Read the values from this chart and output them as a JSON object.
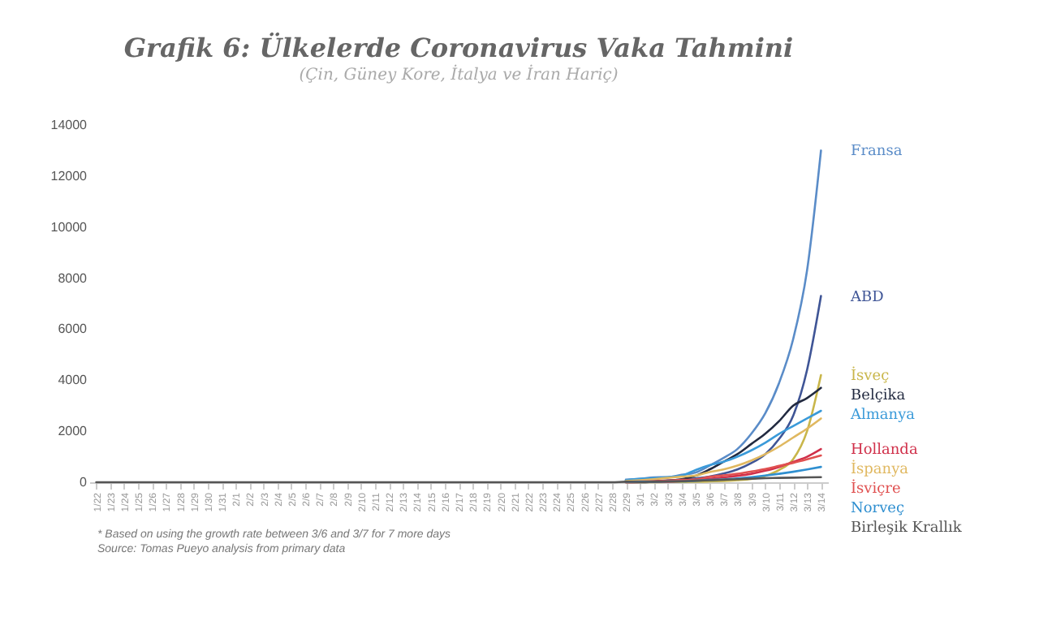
{
  "chart_data": {
    "type": "line",
    "title": "Grafik 6: Ülkelerde Coronavirus Vaka Tahmini",
    "subtitle": "(Çin, Güney Kore, İtalya ve İran Hariç)",
    "categories": [
      "1/22",
      "1/23",
      "1/24",
      "1/25",
      "1/26",
      "1/27",
      "1/28",
      "1/29",
      "1/30",
      "1/31",
      "2/1",
      "2/2",
      "2/3",
      "2/4",
      "2/5",
      "2/6",
      "2/7",
      "2/8",
      "2/9",
      "2/10",
      "2/11",
      "2/12",
      "2/13",
      "2/14",
      "2/15",
      "2/16",
      "2/17",
      "2/18",
      "2/19",
      "2/20",
      "2/21",
      "2/22",
      "2/23",
      "2/24",
      "2/25",
      "2/26",
      "2/27",
      "2/28",
      "2/29",
      "3/1",
      "3/2",
      "3/3",
      "3/4",
      "3/5",
      "3/6",
      "3/7",
      "3/8",
      "3/9",
      "3/10",
      "3/11",
      "3/12",
      "3/13",
      "3/14"
    ],
    "series": [
      {
        "name": "Fransa",
        "color": "#5a8cc8",
        "values": [
          null,
          null,
          null,
          null,
          null,
          null,
          null,
          null,
          null,
          null,
          null,
          null,
          null,
          null,
          null,
          null,
          null,
          null,
          null,
          null,
          null,
          null,
          null,
          null,
          null,
          null,
          null,
          null,
          null,
          null,
          null,
          null,
          null,
          null,
          null,
          null,
          null,
          null,
          100,
          130,
          190,
          200,
          290,
          380,
          650,
          950,
          1300,
          1900,
          2700,
          3900,
          5600,
          8300,
          13000
        ]
      },
      {
        "name": "ABD",
        "color": "#3f5596",
        "values": [
          null,
          null,
          null,
          null,
          null,
          null,
          null,
          null,
          null,
          null,
          null,
          null,
          null,
          null,
          null,
          null,
          null,
          null,
          null,
          null,
          null,
          null,
          null,
          null,
          null,
          null,
          null,
          null,
          null,
          null,
          null,
          null,
          null,
          null,
          null,
          null,
          null,
          null,
          70,
          30,
          50,
          70,
          100,
          150,
          220,
          340,
          500,
          750,
          1100,
          1700,
          2600,
          4400,
          7300
        ]
      },
      {
        "name": "İsveç",
        "color": "#c9b64a",
        "values": [
          null,
          null,
          null,
          null,
          null,
          null,
          null,
          null,
          null,
          null,
          null,
          null,
          null,
          null,
          null,
          null,
          null,
          null,
          null,
          null,
          null,
          null,
          null,
          null,
          null,
          null,
          null,
          null,
          null,
          null,
          null,
          null,
          null,
          null,
          null,
          null,
          null,
          null,
          0,
          0,
          0,
          10,
          10,
          20,
          30,
          50,
          80,
          130,
          250,
          480,
          900,
          2000,
          4200
        ]
      },
      {
        "name": "Belçika",
        "color": "#222a40",
        "values": [
          null,
          null,
          null,
          null,
          null,
          null,
          null,
          null,
          null,
          null,
          null,
          null,
          null,
          null,
          null,
          null,
          null,
          null,
          null,
          null,
          null,
          null,
          null,
          null,
          null,
          null,
          null,
          null,
          null,
          null,
          null,
          null,
          null,
          null,
          null,
          null,
          null,
          null,
          0,
          0,
          20,
          60,
          120,
          250,
          500,
          800,
          1100,
          1500,
          1900,
          2400,
          3000,
          3300,
          3700
        ]
      },
      {
        "name": "Almanya",
        "color": "#3a9ad9",
        "values": [
          null,
          null,
          null,
          null,
          null,
          null,
          null,
          null,
          null,
          null,
          null,
          null,
          null,
          null,
          null,
          null,
          null,
          null,
          null,
          null,
          null,
          null,
          null,
          null,
          null,
          null,
          null,
          null,
          null,
          null,
          null,
          null,
          null,
          null,
          null,
          null,
          null,
          null,
          80,
          130,
          160,
          200,
          260,
          480,
          670,
          800,
          1000,
          1250,
          1550,
          1900,
          2200,
          2500,
          2800
        ]
      },
      {
        "name": "Hollanda",
        "color": "#d0304a",
        "values": [
          null,
          null,
          null,
          null,
          null,
          null,
          null,
          null,
          null,
          null,
          null,
          null,
          null,
          null,
          null,
          null,
          null,
          null,
          null,
          null,
          null,
          null,
          null,
          null,
          null,
          null,
          null,
          null,
          null,
          null,
          null,
          null,
          null,
          null,
          null,
          null,
          null,
          null,
          0,
          10,
          20,
          20,
          40,
          80,
          130,
          190,
          250,
          330,
          450,
          600,
          800,
          1000,
          1300
        ]
      },
      {
        "name": "İspanya",
        "color": "#e0b860",
        "values": [
          null,
          null,
          null,
          null,
          null,
          null,
          null,
          null,
          null,
          null,
          null,
          null,
          null,
          null,
          null,
          null,
          null,
          null,
          null,
          null,
          null,
          null,
          null,
          null,
          null,
          null,
          null,
          null,
          null,
          null,
          null,
          null,
          null,
          null,
          null,
          null,
          null,
          null,
          50,
          80,
          120,
          170,
          220,
          260,
          400,
          500,
          650,
          850,
          1100,
          1400,
          1750,
          2100,
          2500
        ]
      },
      {
        "name": "İsviçre",
        "color": "#e05050",
        "values": [
          null,
          null,
          null,
          null,
          null,
          null,
          null,
          null,
          null,
          null,
          null,
          null,
          null,
          null,
          null,
          null,
          null,
          null,
          null,
          null,
          null,
          null,
          null,
          null,
          null,
          null,
          null,
          null,
          null,
          null,
          null,
          null,
          null,
          null,
          null,
          null,
          null,
          null,
          20,
          30,
          40,
          60,
          90,
          110,
          210,
          270,
          330,
          420,
          520,
          640,
          760,
          900,
          1050
        ]
      },
      {
        "name": "Norveç",
        "color": "#2f8fd0",
        "values": [
          null,
          null,
          null,
          null,
          null,
          null,
          null,
          null,
          null,
          null,
          null,
          null,
          null,
          null,
          null,
          null,
          null,
          null,
          null,
          null,
          null,
          null,
          null,
          null,
          null,
          null,
          null,
          null,
          null,
          null,
          null,
          null,
          null,
          null,
          null,
          null,
          null,
          null,
          20,
          20,
          20,
          30,
          30,
          60,
          90,
          110,
          150,
          200,
          260,
          330,
          410,
          500,
          600
        ]
      },
      {
        "name": "Birleşik Krallık",
        "color": "#555555",
        "values": [
          0,
          0,
          0,
          0,
          0,
          0,
          0,
          0,
          0,
          0,
          0,
          0,
          0,
          0,
          0,
          0,
          0,
          0,
          0,
          0,
          0,
          0,
          0,
          0,
          0,
          0,
          0,
          0,
          0,
          0,
          0,
          0,
          0,
          0,
          0,
          0,
          0,
          0,
          20,
          10,
          20,
          30,
          40,
          60,
          80,
          100,
          120,
          140,
          160,
          170,
          180,
          190,
          200
        ]
      }
    ],
    "ylim": [
      0,
      14000
    ],
    "yticks": [
      0,
      2000,
      4000,
      6000,
      8000,
      10000,
      12000,
      14000
    ],
    "grid": false,
    "line_style": "solid",
    "marker": "none",
    "annotations": [
      "* Based on using the growth rate between 3/6 and 3/7 for 7 more days",
      "Source: Tomas Pueyo analysis from primary data"
    ]
  }
}
